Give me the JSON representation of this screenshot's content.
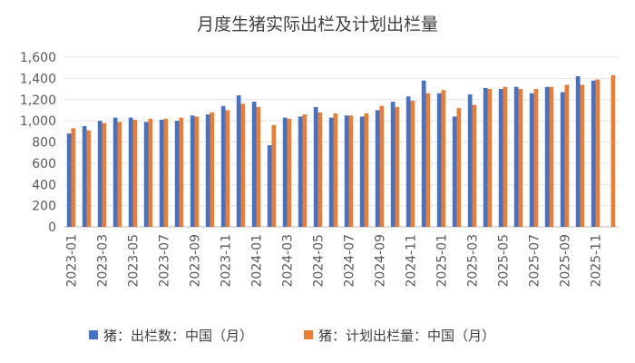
{
  "chart_data": {
    "type": "bar",
    "title": "月度生猪实际出栏及计划出栏量",
    "ylim": [
      0,
      1600
    ],
    "yticks": [
      "0",
      "200",
      "400",
      "600",
      "800",
      "1,000",
      "1,200",
      "1,400",
      "1,600"
    ],
    "x": [
      "2023-01",
      "2023-02",
      "2023-03",
      "2023-04",
      "2023-05",
      "2023-06",
      "2023-07",
      "2023-08",
      "2023-09",
      "2023-10",
      "2023-11",
      "2023-12",
      "2024-01",
      "2024-02",
      "2024-03",
      "2024-04",
      "2024-05",
      "2024-06",
      "2024-07",
      "2024-08",
      "2024-09",
      "2024-10",
      "2024-11",
      "2024-12",
      "2025-01",
      "2025-02",
      "2025-03",
      "2025-04",
      "2025-05",
      "2025-06",
      "2025-07",
      "2025-08",
      "2025-09",
      "2025-10",
      "2025-11",
      "2025-12"
    ],
    "xtick_labels": [
      "2023-01",
      "2023-03",
      "2023-05",
      "2023-07",
      "2023-09",
      "2023-11",
      "2024-01",
      "2024-03",
      "2024-05",
      "2024-07",
      "2024-09",
      "2024-11",
      "2025-01",
      "2025-03",
      "2025-05",
      "2025-07",
      "2025-09",
      "2025-11"
    ],
    "legend_position": "bottom",
    "series": [
      {
        "name": "猪：出栏数：中国（月）",
        "color": "#4472C4",
        "values": [
          880,
          950,
          1000,
          1030,
          1030,
          990,
          1010,
          1000,
          1050,
          1060,
          1140,
          1240,
          1180,
          770,
          1030,
          1040,
          1130,
          1030,
          1050,
          1040,
          1100,
          1180,
          1230,
          1380,
          1260,
          1040,
          1250,
          1310,
          1300,
          1320,
          1260,
          1320,
          1270,
          1420,
          1380,
          null
        ]
      },
      {
        "name": "猪：计划出栏量：中国（月）",
        "color": "#ED7D31",
        "values": [
          930,
          910,
          980,
          990,
          1010,
          1020,
          1020,
          1030,
          1040,
          1080,
          1100,
          1160,
          1130,
          960,
          1020,
          1060,
          1080,
          1070,
          1050,
          1070,
          1140,
          1130,
          1190,
          1260,
          1290,
          1120,
          1150,
          1300,
          1320,
          1300,
          1300,
          1320,
          1340,
          1340,
          1390,
          1430
        ]
      }
    ]
  }
}
